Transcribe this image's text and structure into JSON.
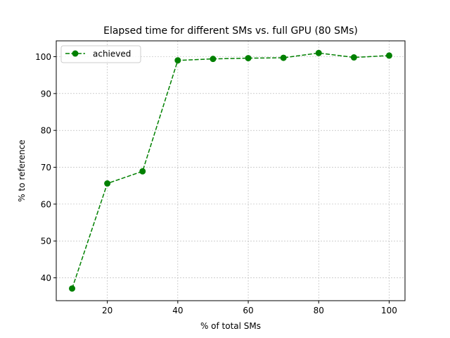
{
  "chart_data": {
    "type": "line",
    "title": "Elapsed time for different SMs vs. full GPU (80 SMs)",
    "xlabel": "% of total SMs",
    "ylabel": "% to reference",
    "x": [
      10,
      20,
      30,
      40,
      50,
      60,
      70,
      80,
      90,
      100
    ],
    "series": [
      {
        "name": "achieved",
        "values": [
          37.1,
          65.6,
          68.9,
          99.0,
          99.4,
          99.6,
          99.7,
          101.0,
          99.8,
          100.3
        ],
        "color": "#008000",
        "line_style": "dashed",
        "marker": "circle"
      }
    ],
    "xlim": [
      5.5,
      104.5
    ],
    "ylim": [
      33.8,
      104.3
    ],
    "xticks": [
      20,
      40,
      60,
      80,
      100
    ],
    "yticks": [
      40,
      50,
      60,
      70,
      80,
      90,
      100
    ],
    "grid": true,
    "legend_position": "top-left"
  }
}
